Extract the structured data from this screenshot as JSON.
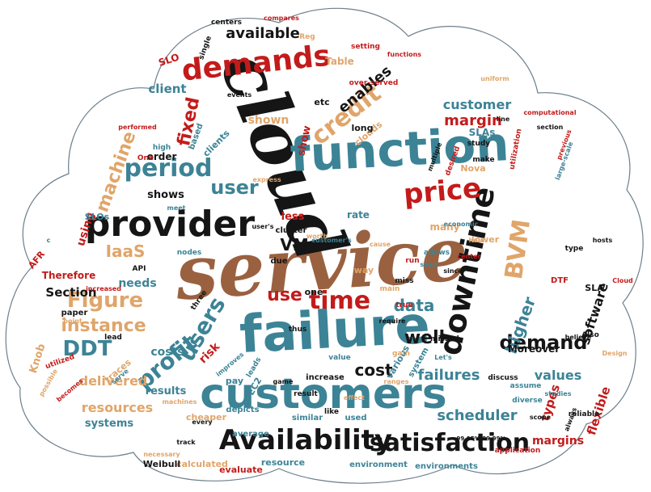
{
  "palette": {
    "black": "#151515",
    "teal": "#3c8396",
    "red": "#c31b1b",
    "tan": "#e0a56a",
    "brown": "#9a6140",
    "outline": "#6c7f8b"
  },
  "words": [
    {
      "text": "service",
      "color": "brown",
      "style": "script"
    },
    {
      "text": "cloud",
      "color": "black",
      "style": "script"
    },
    {
      "text": "failure",
      "color": "teal",
      "style": "sans"
    },
    {
      "text": "customers",
      "color": "teal",
      "style": "sans"
    },
    {
      "text": "function",
      "color": "teal",
      "style": "sans"
    },
    {
      "text": "provider",
      "color": "black",
      "style": "sans"
    },
    {
      "text": "downtime",
      "color": "black",
      "style": "sans"
    },
    {
      "text": "demands",
      "color": "red",
      "style": "sans"
    },
    {
      "text": "Availability",
      "color": "black",
      "style": "sans"
    },
    {
      "text": "satisfaction",
      "color": "black",
      "style": "sans"
    },
    {
      "text": "price",
      "color": "red",
      "style": "sans"
    },
    {
      "text": "time",
      "color": "red",
      "style": "sans"
    },
    {
      "text": "period",
      "color": "teal",
      "style": "sans"
    },
    {
      "text": "users",
      "color": "teal",
      "style": "sans"
    },
    {
      "text": "credit",
      "color": "tan",
      "style": "sans"
    },
    {
      "text": "profit",
      "color": "teal",
      "style": "sans"
    },
    {
      "text": "Figure",
      "color": "tan",
      "style": "sans"
    },
    {
      "text": "DDT",
      "color": "teal",
      "style": "sans"
    },
    {
      "text": "BVM",
      "color": "tan",
      "style": "sans"
    },
    {
      "text": "demand",
      "color": "black",
      "style": "sans"
    },
    {
      "text": "user",
      "color": "teal",
      "style": "sans"
    },
    {
      "text": "fixed",
      "color": "red",
      "style": "sans"
    },
    {
      "text": "machine",
      "color": "tan",
      "style": "sans"
    },
    {
      "text": "instance",
      "color": "tan",
      "style": "sans"
    },
    {
      "text": "use",
      "color": "red",
      "style": "sans"
    },
    {
      "text": "well",
      "color": "black",
      "style": "sans"
    },
    {
      "text": "higher",
      "color": "teal",
      "style": "sans"
    },
    {
      "text": "data",
      "color": "teal",
      "style": "sans"
    },
    {
      "text": "cost",
      "color": "black",
      "style": "sans"
    },
    {
      "text": "available",
      "color": "black",
      "style": "sans"
    },
    {
      "text": "enables",
      "color": "black",
      "style": "sans"
    },
    {
      "text": "margin",
      "color": "red",
      "style": "sans"
    },
    {
      "text": "customer",
      "color": "teal",
      "style": "sans"
    },
    {
      "text": "IaaS",
      "color": "tan",
      "style": "sans"
    },
    {
      "text": "VMs",
      "color": "black",
      "style": "sans"
    },
    {
      "text": "scheduler",
      "color": "teal",
      "style": "sans"
    },
    {
      "text": "failures",
      "color": "teal",
      "style": "sans"
    },
    {
      "text": "resources",
      "color": "tan",
      "style": "sans"
    },
    {
      "text": "delivered",
      "color": "tan",
      "style": "sans"
    },
    {
      "text": "software",
      "color": "black",
      "style": "sans"
    },
    {
      "text": "values",
      "color": "teal",
      "style": "sans"
    },
    {
      "text": "flexible",
      "color": "red",
      "style": "sans"
    },
    {
      "text": "types",
      "color": "red",
      "style": "sans"
    },
    {
      "text": "margins",
      "color": "red",
      "style": "sans"
    },
    {
      "text": "Section",
      "color": "black",
      "style": "sans"
    },
    {
      "text": "shown",
      "color": "tan",
      "style": "sans"
    },
    {
      "text": "client",
      "color": "teal",
      "style": "sans"
    },
    {
      "text": "using",
      "color": "red",
      "style": "sans"
    },
    {
      "text": "needs",
      "color": "teal",
      "style": "sans"
    },
    {
      "text": "costs",
      "color": "teal",
      "style": "sans"
    },
    {
      "text": "risk",
      "color": "red",
      "style": "sans"
    },
    {
      "text": "Knob",
      "color": "tan",
      "style": "sans"
    },
    {
      "text": "systems",
      "color": "teal",
      "style": "sans"
    },
    {
      "text": "results",
      "color": "teal",
      "style": "sans"
    },
    {
      "text": "shows",
      "color": "black",
      "style": "sans"
    },
    {
      "text": "show",
      "color": "red",
      "style": "sans"
    },
    {
      "text": "less",
      "color": "red",
      "style": "sans"
    },
    {
      "text": "Moreover",
      "color": "black",
      "style": "sans"
    },
    {
      "text": "rate",
      "color": "teal",
      "style": "sans"
    },
    {
      "text": "Table",
      "color": "tan",
      "style": "sans"
    },
    {
      "text": "order",
      "color": "black",
      "style": "sans"
    },
    {
      "text": "various",
      "color": "teal",
      "style": "sans"
    },
    {
      "text": "many",
      "color": "tan",
      "style": "sans"
    },
    {
      "text": "Therefore",
      "color": "red",
      "style": "sans"
    },
    {
      "text": "resource",
      "color": "teal",
      "style": "sans"
    },
    {
      "text": "calculated",
      "color": "tan",
      "style": "sans"
    },
    {
      "text": "evaluate",
      "color": "red",
      "style": "sans"
    },
    {
      "text": "environment",
      "color": "teal",
      "style": "sans"
    },
    {
      "text": "environments",
      "color": "teal",
      "style": "sans"
    },
    {
      "text": "Weibull",
      "color": "black",
      "style": "sans"
    },
    {
      "text": "cheaper",
      "color": "tan",
      "style": "sans"
    },
    {
      "text": "pay",
      "color": "teal",
      "style": "sans"
    },
    {
      "text": "increase",
      "color": "black",
      "style": "sans"
    },
    {
      "text": "used",
      "color": "teal",
      "style": "sans"
    },
    {
      "text": "SLAs",
      "color": "teal",
      "style": "sans"
    },
    {
      "text": "SLO",
      "color": "red",
      "style": "sans"
    },
    {
      "text": "SLOs",
      "color": "teal",
      "style": "sans"
    },
    {
      "text": "etc",
      "color": "black",
      "style": "sans"
    },
    {
      "text": "one",
      "color": "black",
      "style": "sans"
    },
    {
      "text": "SLA",
      "color": "black",
      "style": "sans"
    },
    {
      "text": "AFR",
      "color": "red",
      "style": "sans"
    },
    {
      "text": "DTF",
      "color": "red",
      "style": "sans"
    },
    {
      "text": "EC2",
      "color": "teal",
      "style": "sans"
    },
    {
      "text": "Nova",
      "color": "tan",
      "style": "sans"
    },
    {
      "text": "clouds",
      "color": "tan",
      "style": "sans"
    },
    {
      "text": "clients",
      "color": "teal",
      "style": "sans"
    },
    {
      "text": "cluster",
      "color": "black",
      "style": "sans"
    },
    {
      "text": "long",
      "color": "black",
      "style": "sans"
    },
    {
      "text": "way",
      "color": "tan",
      "style": "sans"
    },
    {
      "text": "due",
      "color": "black",
      "style": "sans"
    },
    {
      "text": "average",
      "color": "teal",
      "style": "sans"
    },
    {
      "text": "similar",
      "color": "teal",
      "style": "sans"
    },
    {
      "text": "like",
      "color": "black",
      "style": "sans"
    },
    {
      "text": "three",
      "color": "black",
      "style": "sans"
    },
    {
      "text": "paper",
      "color": "black",
      "style": "sans"
    },
    {
      "text": "traces",
      "color": "tan",
      "style": "sans"
    },
    {
      "text": "depicts",
      "color": "teal",
      "style": "sans"
    },
    {
      "text": "application",
      "color": "red",
      "style": "sans"
    },
    {
      "text": "lower",
      "color": "tan",
      "style": "sans"
    },
    {
      "text": "system",
      "color": "teal",
      "style": "sans"
    },
    {
      "text": "centers",
      "color": "black",
      "style": "sans"
    },
    {
      "text": "compares",
      "color": "red",
      "style": "sans"
    },
    {
      "text": "setting",
      "color": "red",
      "style": "sans"
    },
    {
      "text": "functions",
      "color": "red",
      "style": "sans"
    },
    {
      "text": "over-served",
      "color": "red",
      "style": "sans"
    },
    {
      "text": "allows",
      "color": "teal",
      "style": "sans"
    },
    {
      "text": "utilization",
      "color": "red",
      "style": "sans"
    },
    {
      "text": "based",
      "color": "teal",
      "style": "sans"
    },
    {
      "text": "high",
      "color": "teal",
      "style": "sans"
    },
    {
      "text": "machines",
      "color": "tan",
      "style": "sans"
    },
    {
      "text": "Reg",
      "color": "tan",
      "style": "sans"
    },
    {
      "text": "single",
      "color": "black",
      "style": "sans"
    },
    {
      "text": "API",
      "color": "black",
      "style": "sans"
    },
    {
      "text": "One",
      "color": "red",
      "style": "sans"
    },
    {
      "text": "nodes",
      "color": "teal",
      "style": "sans"
    },
    {
      "text": "main",
      "color": "tan",
      "style": "sans"
    },
    {
      "text": "run",
      "color": "red",
      "style": "sans"
    },
    {
      "text": "hour",
      "color": "tan",
      "style": "sans"
    },
    {
      "text": "miss",
      "color": "black",
      "style": "sans"
    },
    {
      "text": "type",
      "color": "black",
      "style": "sans"
    },
    {
      "text": "Also",
      "color": "black",
      "style": "sans"
    },
    {
      "text": "assume",
      "color": "teal",
      "style": "sans"
    },
    {
      "text": "diverse",
      "color": "teal",
      "style": "sans"
    },
    {
      "text": "discuss",
      "color": "black",
      "style": "sans"
    },
    {
      "text": "reliable",
      "color": "black",
      "style": "sans"
    },
    {
      "text": "scope",
      "color": "black",
      "style": "sans"
    },
    {
      "text": "always",
      "color": "black",
      "style": "sans"
    },
    {
      "text": "result",
      "color": "black",
      "style": "sans"
    },
    {
      "text": "leads",
      "color": "teal",
      "style": "sans"
    },
    {
      "text": "gain",
      "color": "tan",
      "style": "sans"
    },
    {
      "text": "missed",
      "color": "black",
      "style": "sans"
    },
    {
      "text": "value",
      "color": "teal",
      "style": "sans"
    },
    {
      "text": "thus",
      "color": "black",
      "style": "sans"
    },
    {
      "text": "serve",
      "color": "teal",
      "style": "sans"
    },
    {
      "text": "point",
      "color": "tan",
      "style": "sans"
    },
    {
      "text": "utilized",
      "color": "red",
      "style": "sans"
    },
    {
      "text": "improves",
      "color": "teal",
      "style": "sans"
    },
    {
      "text": "lead",
      "color": "black",
      "style": "sans"
    },
    {
      "text": "necessary",
      "color": "tan",
      "style": "sans"
    },
    {
      "text": "make",
      "color": "black",
      "style": "sans"
    },
    {
      "text": "study",
      "color": "black",
      "style": "sans"
    },
    {
      "text": "section",
      "color": "black",
      "style": "sans"
    },
    {
      "text": "line",
      "color": "black",
      "style": "sans"
    },
    {
      "text": "desired",
      "color": "red",
      "style": "sans"
    },
    {
      "text": "meet",
      "color": "teal",
      "style": "sans"
    },
    {
      "text": "uniform",
      "color": "tan",
      "style": "sans"
    },
    {
      "text": "events",
      "color": "black",
      "style": "sans"
    },
    {
      "text": "express",
      "color": "tan",
      "style": "sans"
    },
    {
      "text": "multiple",
      "color": "black",
      "style": "sans"
    },
    {
      "text": "economic",
      "color": "teal",
      "style": "sans"
    },
    {
      "text": "since",
      "color": "black",
      "style": "sans"
    },
    {
      "text": "true",
      "color": "red",
      "style": "sans"
    },
    {
      "text": "seen",
      "color": "teal",
      "style": "sans"
    },
    {
      "text": "worth",
      "color": "tan",
      "style": "sans"
    },
    {
      "text": "hosts",
      "color": "black",
      "style": "sans"
    },
    {
      "text": "believe",
      "color": "black",
      "style": "sans"
    },
    {
      "text": "ranges",
      "color": "tan",
      "style": "sans"
    },
    {
      "text": "every",
      "color": "black",
      "style": "sans"
    },
    {
      "text": "require",
      "color": "black",
      "style": "sans"
    },
    {
      "text": "increased",
      "color": "red",
      "style": "sans"
    },
    {
      "text": "performed",
      "color": "red",
      "style": "sans"
    },
    {
      "text": "computational",
      "color": "red",
      "style": "sans"
    },
    {
      "text": "previous",
      "color": "red",
      "style": "sans"
    },
    {
      "text": "large-scale",
      "color": "teal",
      "style": "sans"
    },
    {
      "text": "track",
      "color": "black",
      "style": "sans"
    },
    {
      "text": "game",
      "color": "black",
      "style": "sans"
    },
    {
      "text": "becomes",
      "color": "red",
      "style": "sans"
    },
    {
      "text": "possible",
      "color": "tan",
      "style": "sans"
    },
    {
      "text": "studies",
      "color": "teal",
      "style": "sans"
    },
    {
      "text": "Design",
      "color": "tan",
      "style": "sans"
    },
    {
      "text": "cause",
      "color": "tan",
      "style": "sans"
    },
    {
      "text": "center",
      "color": "red",
      "style": "sans"
    },
    {
      "text": "effect",
      "color": "tan",
      "style": "sans"
    },
    {
      "text": "customer's",
      "color": "teal",
      "style": "sans"
    },
    {
      "text": "user's",
      "color": "black",
      "style": "sans"
    },
    {
      "text": "Cloud",
      "color": "red",
      "style": "sans"
    },
    {
      "text": "Let's",
      "color": "teal",
      "style": "sans"
    },
    {
      "text": "c",
      "color": "teal",
      "style": "sans"
    },
    {
      "text": "99.95%,99.99%",
      "color": "black",
      "style": "sans"
    }
  ]
}
